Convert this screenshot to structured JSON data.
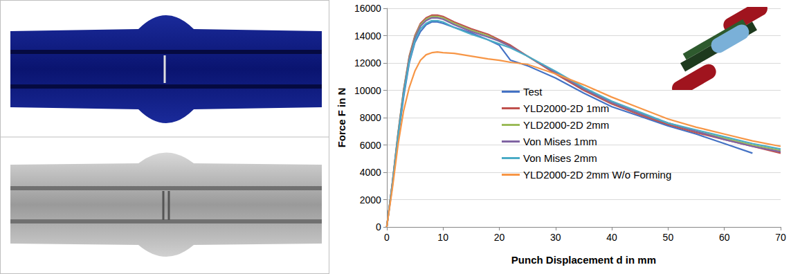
{
  "chart_data": {
    "type": "line",
    "xlabel": "Punch Displacement d in mm",
    "ylabel": "Force F in N",
    "x": [
      0,
      1,
      2,
      3,
      4,
      5,
      6,
      7,
      8,
      9,
      10,
      12,
      15,
      18,
      20,
      22,
      25,
      30,
      35,
      40,
      45,
      50,
      55,
      60,
      65,
      70
    ],
    "series": [
      {
        "name": "Test",
        "color": "#4472c4",
        "values": [
          0,
          3000,
          6500,
          9500,
          12000,
          13500,
          14300,
          14800,
          15000,
          15000,
          14900,
          14600,
          14200,
          13700,
          13300,
          12200,
          11800,
          10900,
          9800,
          8800,
          8100,
          7400,
          6800,
          6100,
          5400,
          null
        ]
      },
      {
        "name": "YLD2000-2D 1mm",
        "color": "#c0504d",
        "values": [
          0,
          3200,
          6800,
          10000,
          12500,
          14000,
          14900,
          15300,
          15500,
          15500,
          15400,
          15000,
          14500,
          14100,
          13700,
          13300,
          12500,
          11200,
          10000,
          9000,
          8200,
          7500,
          6900,
          6400,
          5900,
          5400
        ]
      },
      {
        "name": "YLD2000-2D 2mm",
        "color": "#9bbb59",
        "values": [
          0,
          3200,
          6800,
          10000,
          12400,
          13900,
          14800,
          15200,
          15400,
          15400,
          15300,
          14900,
          14400,
          14000,
          13600,
          13200,
          12500,
          11300,
          10100,
          9100,
          8300,
          7600,
          7000,
          6500,
          6000,
          5600
        ]
      },
      {
        "name": "Von Mises 1mm",
        "color": "#8064a2",
        "values": [
          0,
          3200,
          6700,
          9900,
          12300,
          13800,
          14700,
          15100,
          15300,
          15300,
          15200,
          14800,
          14300,
          13900,
          13600,
          13200,
          12500,
          11300,
          10100,
          9100,
          8300,
          7600,
          7000,
          6400,
          5900,
          5500
        ]
      },
      {
        "name": "Von Mises 2mm",
        "color": "#4bacc6",
        "values": [
          0,
          3100,
          6600,
          9700,
          12100,
          13600,
          14500,
          14900,
          15100,
          15100,
          15000,
          14600,
          14100,
          13700,
          13400,
          13100,
          12500,
          11400,
          10200,
          9200,
          8400,
          7600,
          7100,
          6600,
          6100,
          5700
        ]
      },
      {
        "name": "YLD2000-2D 2mm W/o Forming",
        "color": "#f79646",
        "values": [
          0,
          2800,
          6000,
          8500,
          10200,
          11400,
          12200,
          12600,
          12750,
          12800,
          12750,
          12700,
          12500,
          12300,
          12200,
          12050,
          11900,
          11200,
          10400,
          9500,
          8700,
          7900,
          7300,
          6800,
          6300,
          5900
        ]
      }
    ],
    "xlim": [
      0,
      70
    ],
    "xticks": [
      0,
      10,
      20,
      30,
      40,
      50,
      60,
      70
    ],
    "ylim": [
      0,
      16000
    ],
    "yticks": [
      0,
      2000,
      4000,
      6000,
      8000,
      10000,
      12000,
      14000,
      16000
    ],
    "grid": true,
    "legend": "center"
  }
}
